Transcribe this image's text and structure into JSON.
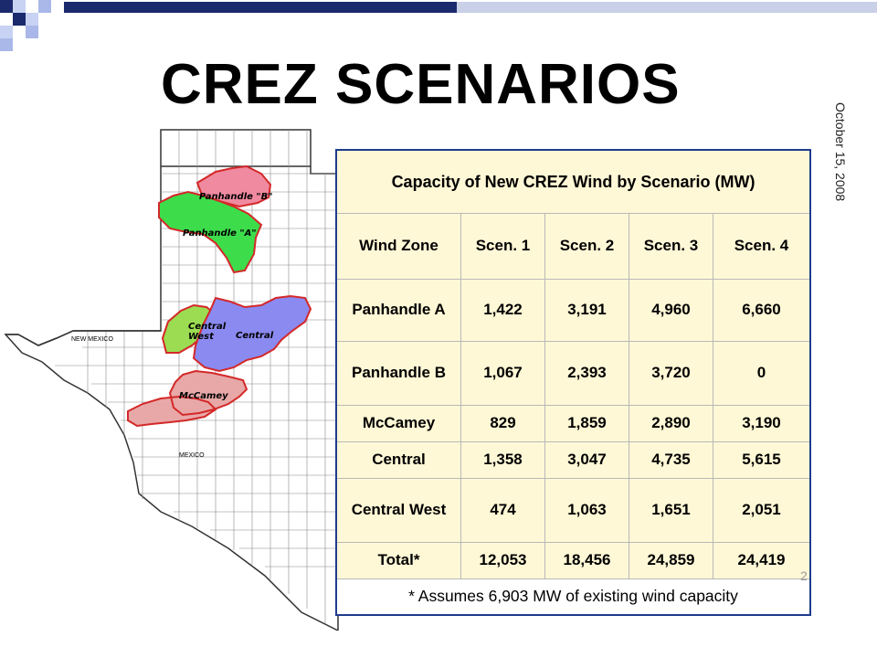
{
  "slide": {
    "title": "CREZ SCENARIOS",
    "date": "October 15, 2008",
    "page_number": "2"
  },
  "map": {
    "state_labels": [
      "NEW MEXICO",
      "MEXICO"
    ],
    "zones": [
      {
        "label": "Panhandle \"B\"",
        "color": "#f08aa0"
      },
      {
        "label": "Panhandle \"A\"",
        "color": "#3ddc4b"
      },
      {
        "label": "Central West",
        "color": "#9bdc52"
      },
      {
        "label": "Central",
        "color": "#8a8af0"
      },
      {
        "label": "McCamey",
        "color": "#e8a8a8"
      }
    ],
    "zone_labels": {
      "panhandle_b": "Panhandle \"B\"",
      "panhandle_a": "Panhandle \"A\"",
      "central_west_1": "Central",
      "central_west_2": "West",
      "central": "Central",
      "mccamey": "McCamey"
    }
  },
  "table": {
    "caption": "Capacity of New CREZ Wind by Scenario (MW)",
    "headers": [
      "Wind Zone",
      "Scen. 1",
      "Scen. 2",
      "Scen. 3",
      "Scen. 4"
    ],
    "rows": [
      [
        "Panhandle A",
        "1,422",
        "3,191",
        "4,960",
        "6,660"
      ],
      [
        "Panhandle B",
        "1,067",
        "2,393",
        "3,720",
        "0"
      ],
      [
        "McCamey",
        "829",
        "1,859",
        "2,890",
        "3,190"
      ],
      [
        "Central",
        "1,358",
        "3,047",
        "4,735",
        "5,615"
      ],
      [
        "Central West",
        "474",
        "1,063",
        "1,651",
        "2,051"
      ],
      [
        "Total*",
        "12,053",
        "18,456",
        "24,859",
        "24,419"
      ]
    ],
    "footnote": "* Assumes 6,903 MW of existing wind capacity"
  },
  "colors": {
    "accent_dark": "#1a2a6c",
    "accent_light": "#a9b8e8",
    "table_fill": "#fff8d6",
    "table_border": "#1f3c8c"
  }
}
